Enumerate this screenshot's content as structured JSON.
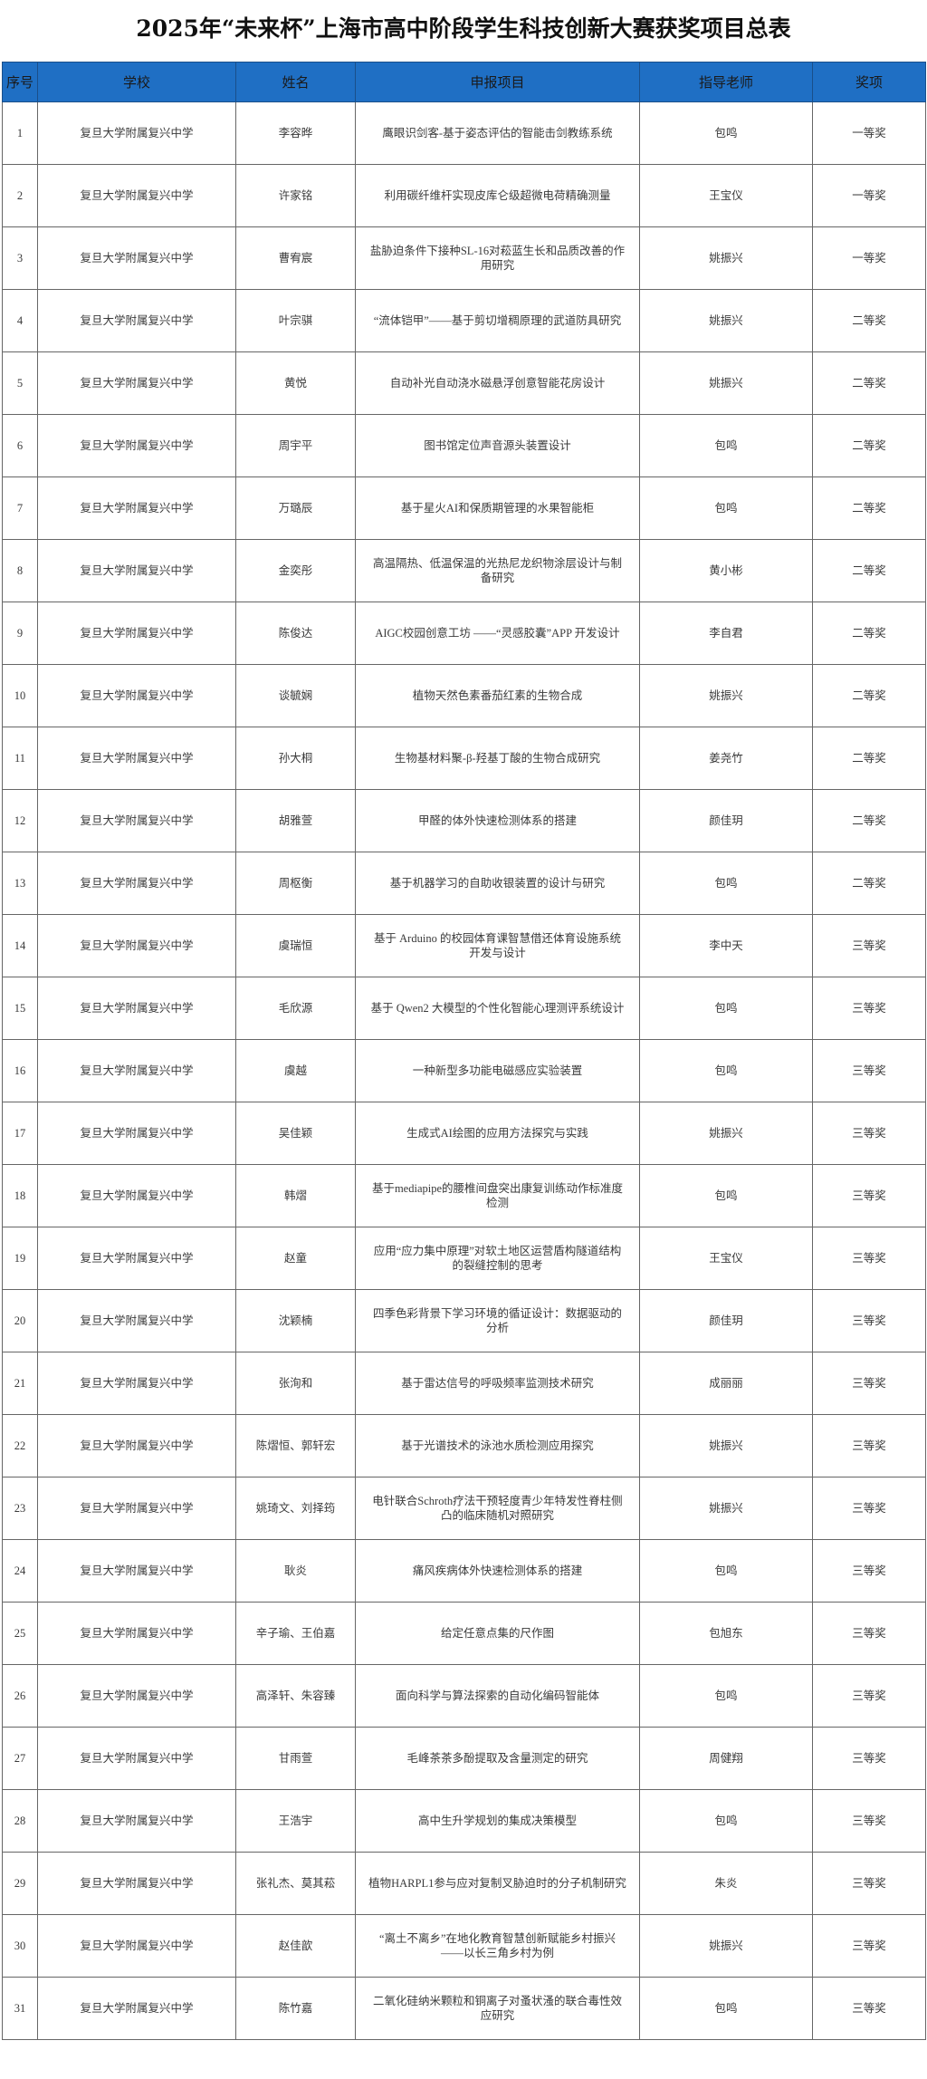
{
  "title": "2025年“未来杯”上海市高中阶段学生科技创新大赛获奖项目总表",
  "colors": {
    "header_bg": "#1f6fc4",
    "border": "#666666"
  },
  "columns": [
    "序号",
    "学校",
    "姓名",
    "申报项目",
    "指导老师",
    "奖项"
  ],
  "rows": [
    {
      "no": "1",
      "school": "复旦大学附属复兴中学",
      "name": "李容晔",
      "project": "鹰眼识剑客-基于姿态评估的智能击剑教练系统",
      "teacher": "包鸣",
      "award": "一等奖"
    },
    {
      "no": "2",
      "school": "复旦大学附属复兴中学",
      "name": "许家铭",
      "project": "利用碳纤维杆实现皮库仑级超微电荷精确测量",
      "teacher": "王宝仪",
      "award": "一等奖"
    },
    {
      "no": "3",
      "school": "复旦大学附属复兴中学",
      "name": "曹宥宸",
      "project": "盐胁迫条件下接种SL-16对菘蓝生长和品质改善的作用研究",
      "teacher": "姚振兴",
      "award": "一等奖"
    },
    {
      "no": "4",
      "school": "复旦大学附属复兴中学",
      "name": "叶宗骐",
      "project": "“流体铠甲”——基于剪切增稠原理的武道防具研究",
      "teacher": "姚振兴",
      "award": "二等奖"
    },
    {
      "no": "5",
      "school": "复旦大学附属复兴中学",
      "name": "黄悦",
      "project": "自动补光自动浇水磁悬浮创意智能花房设计",
      "teacher": "姚振兴",
      "award": "二等奖"
    },
    {
      "no": "6",
      "school": "复旦大学附属复兴中学",
      "name": "周宇平",
      "project": "图书馆定位声音源头装置设计",
      "teacher": "包鸣",
      "award": "二等奖"
    },
    {
      "no": "7",
      "school": "复旦大学附属复兴中学",
      "name": "万璐辰",
      "project": "基于星火AI和保质期管理的水果智能柜",
      "teacher": "包鸣",
      "award": "二等奖"
    },
    {
      "no": "8",
      "school": "复旦大学附属复兴中学",
      "name": "金奕彤",
      "project": "高温隔热、低温保温的光热尼龙织物涂层设计与制备研究",
      "teacher": "黄小彬",
      "award": "二等奖"
    },
    {
      "no": "9",
      "school": "复旦大学附属复兴中学",
      "name": "陈俊达",
      "project": "AIGC校园创意工坊 ——“灵感胶囊”APP 开发设计",
      "teacher": "李自君",
      "award": "二等奖"
    },
    {
      "no": "10",
      "school": "复旦大学附属复兴中学",
      "name": "谈毓娴",
      "project": "植物天然色素番茄红素的生物合成",
      "teacher": "姚振兴",
      "award": "二等奖"
    },
    {
      "no": "11",
      "school": "复旦大学附属复兴中学",
      "name": "孙大桐",
      "project": "生物基材料聚-β-羟基丁酸的生物合成研究",
      "teacher": "姜尧竹",
      "award": "二等奖"
    },
    {
      "no": "12",
      "school": "复旦大学附属复兴中学",
      "name": "胡雅萱",
      "project": "甲醛的体外快速检测体系的搭建",
      "teacher": "颜佳玥",
      "award": "二等奖"
    },
    {
      "no": "13",
      "school": "复旦大学附属复兴中学",
      "name": "周枢衡",
      "project": "基于机器学习的自助收银装置的设计与研究",
      "teacher": "包鸣",
      "award": "二等奖"
    },
    {
      "no": "14",
      "school": "复旦大学附属复兴中学",
      "name": "虞瑞恒",
      "project": "基于 Arduino 的校园体育课智慧借还体育设施系统开发与设计",
      "teacher": "李中天",
      "award": "三等奖"
    },
    {
      "no": "15",
      "school": "复旦大学附属复兴中学",
      "name": "毛欣源",
      "project": "基于 Qwen2 大模型的个性化智能心理测评系统设计",
      "teacher": "包鸣",
      "award": "三等奖"
    },
    {
      "no": "16",
      "school": "复旦大学附属复兴中学",
      "name": "虞越",
      "project": "一种新型多功能电磁感应实验装置",
      "teacher": "包鸣",
      "award": "三等奖"
    },
    {
      "no": "17",
      "school": "复旦大学附属复兴中学",
      "name": "吴佳颖",
      "project": "生成式AI绘图的应用方法探究与实践",
      "teacher": "姚振兴",
      "award": "三等奖"
    },
    {
      "no": "18",
      "school": "复旦大学附属复兴中学",
      "name": "韩熠",
      "project": "基于mediapipe的腰椎间盘突出康复训练动作标准度检测",
      "teacher": "包鸣",
      "award": "三等奖"
    },
    {
      "no": "19",
      "school": "复旦大学附属复兴中学",
      "name": "赵童",
      "project": "应用“应力集中原理”对软土地区运营盾构隧道结构的裂缝控制的思考",
      "teacher": "王宝仪",
      "award": "三等奖"
    },
    {
      "no": "20",
      "school": "复旦大学附属复兴中学",
      "name": "沈颖楠",
      "project": "四季色彩背景下学习环境的循证设计：数据驱动的分析",
      "teacher": "颜佳玥",
      "award": "三等奖"
    },
    {
      "no": "21",
      "school": "复旦大学附属复兴中学",
      "name": "张洵和",
      "project": "基于雷达信号的呼吸频率监测技术研究",
      "teacher": "成丽丽",
      "award": "三等奖"
    },
    {
      "no": "22",
      "school": "复旦大学附属复兴中学",
      "name": "陈熠恒、郭轩宏",
      "project": "基于光谱技术的泳池水质检测应用探究",
      "teacher": "姚振兴",
      "award": "三等奖"
    },
    {
      "no": "23",
      "school": "复旦大学附属复兴中学",
      "name": "姚琦文、刘择筠",
      "project": "电针联合Schroth疗法干预轻度青少年特发性脊柱侧凸的临床随机对照研究",
      "teacher": "姚振兴",
      "award": "三等奖"
    },
    {
      "no": "24",
      "school": "复旦大学附属复兴中学",
      "name": "耿炎",
      "project": "痛风疾病体外快速检测体系的搭建",
      "teacher": "包鸣",
      "award": "三等奖"
    },
    {
      "no": "25",
      "school": "复旦大学附属复兴中学",
      "name": "辛子瑜、王伯嘉",
      "project": "给定任意点集的尺作图",
      "teacher": "包旭东",
      "award": "三等奖"
    },
    {
      "no": "26",
      "school": "复旦大学附属复兴中学",
      "name": "高泽轩、朱容臻",
      "project": "面向科学与算法探索的自动化编码智能体",
      "teacher": "包鸣",
      "award": "三等奖"
    },
    {
      "no": "27",
      "school": "复旦大学附属复兴中学",
      "name": "甘雨萱",
      "project": "毛峰茶茶多酚提取及含量测定的研究",
      "teacher": "周健翔",
      "award": "三等奖"
    },
    {
      "no": "28",
      "school": "复旦大学附属复兴中学",
      "name": "王浩宇",
      "project": "高中生升学规划的集成决策模型",
      "teacher": "包鸣",
      "award": "三等奖"
    },
    {
      "no": "29",
      "school": "复旦大学附属复兴中学",
      "name": "张礼杰、莫其菘",
      "project": "植物HARPL1参与应对复制叉胁迫时的分子机制研究",
      "teacher": "朱炎",
      "award": "三等奖"
    },
    {
      "no": "30",
      "school": "复旦大学附属复兴中学",
      "name": "赵佳歆",
      "project": "“离土不离乡”在地化教育智慧创新赋能乡村振兴——以长三角乡村为例",
      "teacher": "姚振兴",
      "award": "三等奖"
    },
    {
      "no": "31",
      "school": "复旦大学附属复兴中学",
      "name": "陈竹嘉",
      "project": "二氧化硅纳米颗粒和铜离子对蚤状溞的联合毒性效应研究",
      "teacher": "包鸣",
      "award": "三等奖"
    }
  ]
}
